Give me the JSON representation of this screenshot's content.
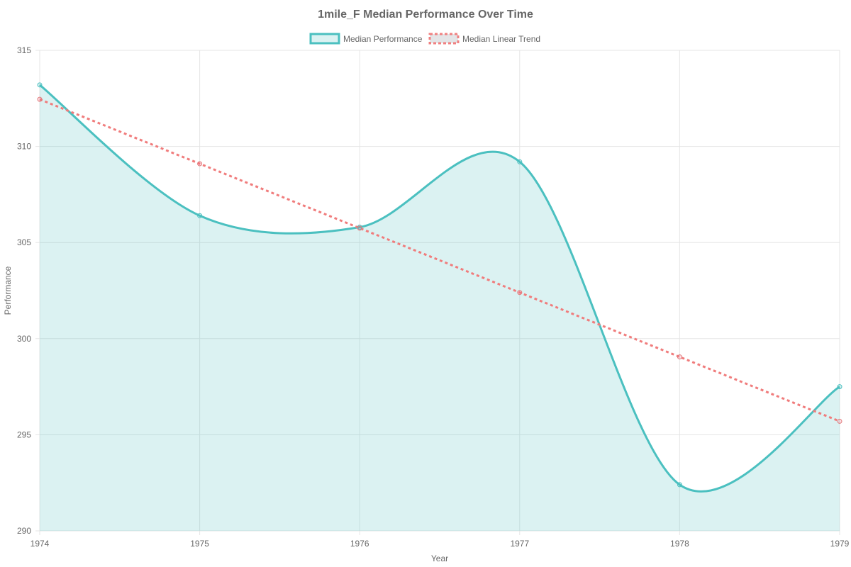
{
  "chart_data": {
    "type": "line",
    "title": "1mile_F Median Performance Over Time",
    "xlabel": "Year",
    "ylabel": "Performance",
    "x": [
      "1974",
      "1975",
      "1976",
      "1977",
      "1978",
      "1979"
    ],
    "ylim": [
      290,
      315
    ],
    "yticks": [
      290,
      295,
      300,
      305,
      310,
      315
    ],
    "grid": true,
    "legend_position": "top",
    "series": [
      {
        "name": "Median Performance",
        "values": [
          313.2,
          306.4,
          305.8,
          309.2,
          292.4,
          297.5
        ],
        "color": "#4bc0c0",
        "fill": "rgba(75,192,192,0.2)",
        "style": "solid",
        "filled": true
      },
      {
        "name": "Median Linear Trend",
        "values": [
          312.45,
          309.1,
          305.75,
          302.4,
          299.05,
          295.7
        ],
        "color": "#ff6384",
        "style": "dashed",
        "filled": false
      }
    ]
  }
}
